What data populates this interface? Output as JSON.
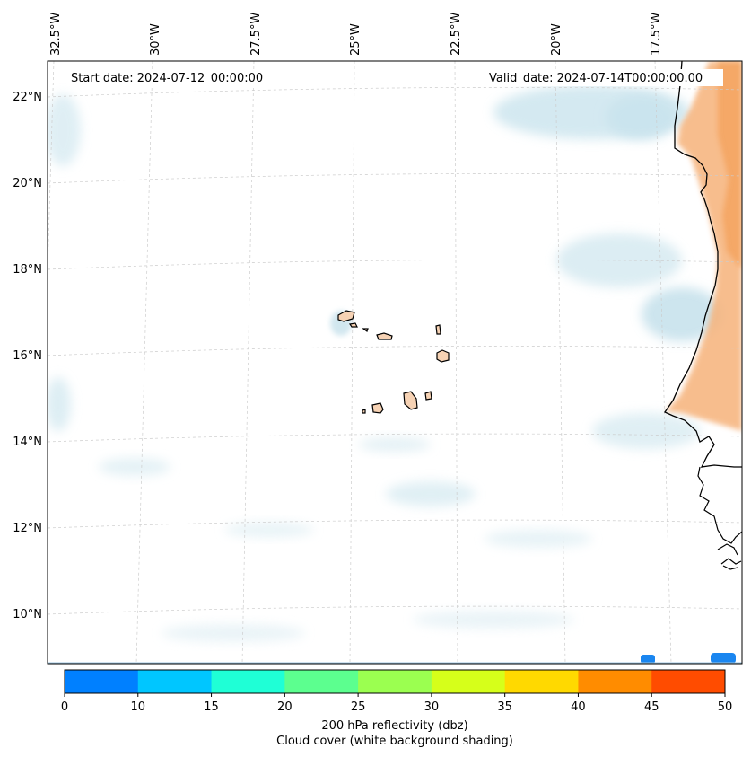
{
  "map": {
    "start_date_label": "Start date: 2024-07-12_00:00:00",
    "valid_date_label": "Valid_date: 2024-07-14T00:00:00.00",
    "lon_labels": [
      "32.5°W",
      "30°W",
      "27.5°W",
      "25°W",
      "22.5°W",
      "20°W",
      "17.5°W"
    ],
    "lat_labels": [
      "22°N",
      "20°N",
      "18°N",
      "16°N",
      "14°N",
      "12°N",
      "10°N"
    ],
    "colors": {
      "coast": "#000000",
      "land_warm": "#f4a05a",
      "island_fill": "#f6d2b4",
      "cloud": "#cfe6ef",
      "grid": "#cccccc"
    }
  },
  "colorbar": {
    "ticks": [
      "0",
      "10",
      "15",
      "20",
      "25",
      "30",
      "35",
      "40",
      "45",
      "50"
    ],
    "colors": [
      "#0080ff",
      "#00c6ff",
      "#1fffd6",
      "#5cff8f",
      "#9bff50",
      "#d6ff1a",
      "#ffd900",
      "#ff8c00",
      "#ff4c00"
    ],
    "label": "200 hPa reflectivity (dbz)",
    "sublabel": "Cloud cover (white background shading)"
  }
}
